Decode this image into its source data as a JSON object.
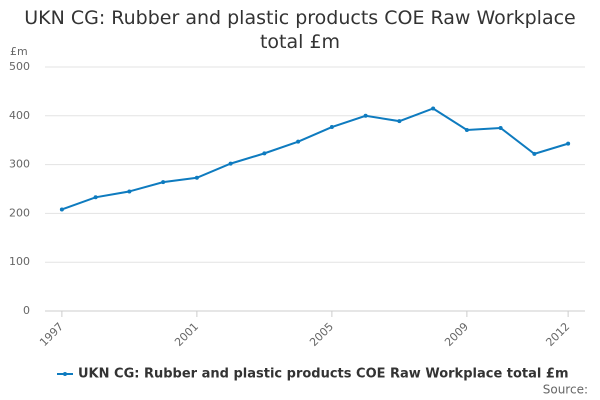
{
  "chart_data": {
    "type": "line",
    "title": "UKN CG: Rubber and plastic products COE Raw Workplace total £m",
    "y_label": "£m",
    "source": "Source:",
    "x": [
      1997,
      1998,
      1999,
      2000,
      2001,
      2002,
      2003,
      2004,
      2005,
      2006,
      2007,
      2008,
      2009,
      2010,
      2011,
      2012
    ],
    "series": [
      {
        "name": "UKN CG: Rubber and plastic products COE Raw Workplace total £m",
        "color": "#0e7bbf",
        "values": [
          208,
          233,
          245,
          264,
          273,
          302,
          323,
          347,
          377,
          400,
          389,
          415,
          371,
          375,
          322,
          343
        ]
      }
    ],
    "xlim": [
      1996.5,
      2012.5
    ],
    "xticks": [
      1997,
      2001,
      2005,
      2009,
      2012
    ],
    "ylim": [
      0,
      500
    ],
    "yticks": [
      0,
      100,
      200,
      300,
      400,
      500
    ],
    "grid": true,
    "legend": "bottom"
  }
}
